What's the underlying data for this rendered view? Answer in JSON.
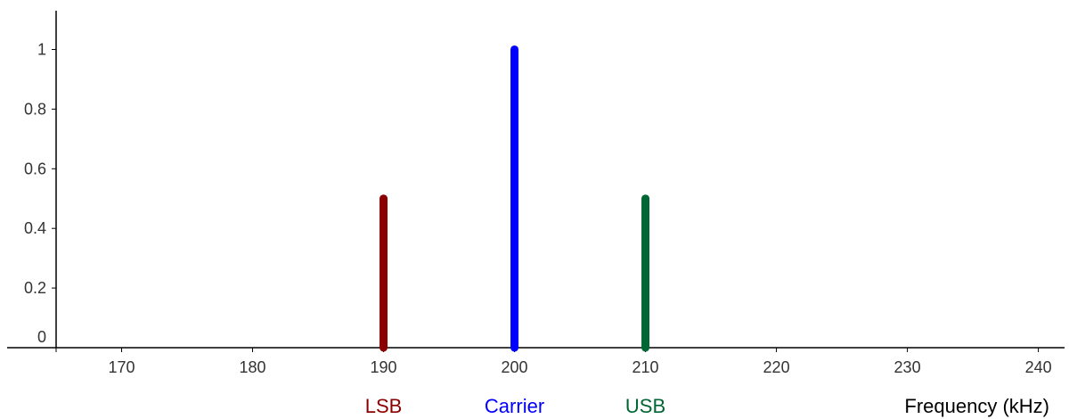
{
  "chart_data": {
    "type": "bar",
    "title": "",
    "xlabel": "Frequency (kHz)",
    "ylabel": "",
    "xlim": [
      165,
      242
    ],
    "ylim": [
      0,
      1.13
    ],
    "grid": false,
    "x_ticks": [
      "170",
      "180",
      "190",
      "200",
      "210",
      "220",
      "230",
      "240"
    ],
    "y_ticks": [
      "0",
      "0.2",
      "0.4",
      "0.6",
      "0.8",
      "1"
    ],
    "series": [
      {
        "name": "LSB",
        "x": 190,
        "value": 0.5,
        "color": "#8b0000"
      },
      {
        "name": "Carrier",
        "x": 200,
        "value": 1.0,
        "color": "#0000ff"
      },
      {
        "name": "USB",
        "x": 210,
        "value": 0.5,
        "color": "#006633"
      }
    ]
  }
}
